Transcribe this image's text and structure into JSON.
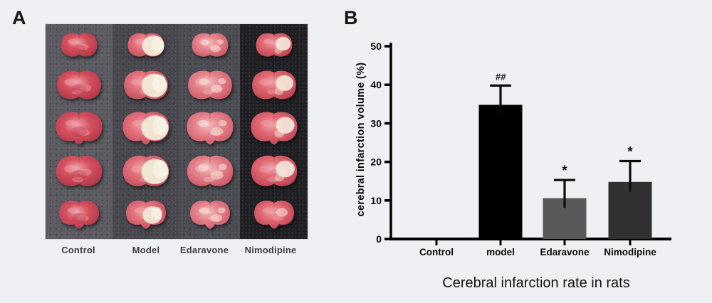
{
  "panelA": {
    "label": "A",
    "rows": 5,
    "columns": [
      {
        "label": "Control",
        "bg": "#5a5a60",
        "base": "#d6505f",
        "light": "#efa3ab",
        "dark": "#b03848",
        "infarct": "none",
        "infarct_color": "#f3e8d8"
      },
      {
        "label": "Model",
        "bg": "#47474d",
        "base": "#e3707c",
        "light": "#f0a8ae",
        "dark": "#c44f5c",
        "infarct": "large",
        "infarct_color": "#f2ead7"
      },
      {
        "label": "Edaravone",
        "bg": "#4b4b52",
        "base": "#e5838d",
        "light": "#f3bcc0",
        "dark": "#cd5a66",
        "infarct": "mottled",
        "infarct_color": "#f5e7dc"
      },
      {
        "label": "Nimodipine",
        "bg": "#202024",
        "base": "#e06672",
        "light": "#eea2a8",
        "dark": "#c04452",
        "infarct": "medium",
        "infarct_color": "#f4e9da"
      }
    ]
  },
  "panelB": {
    "label": "B",
    "caption": "Cerebral infarction rate in rats"
  },
  "chart_data": {
    "type": "bar",
    "categories": [
      "Control",
      "model",
      "Edaravone",
      "Nimodipine"
    ],
    "values": [
      0,
      34.8,
      10.6,
      14.8
    ],
    "errors": [
      0,
      5.0,
      4.7,
      5.4
    ],
    "annotations": [
      "",
      "##",
      "*",
      "*"
    ],
    "bar_colors": [
      "#000000",
      "#000000",
      "#59595b",
      "#313134"
    ],
    "title": "Cerebral infarction rate in rats",
    "xlabel": "",
    "ylabel": "cerebral infarction volume (%)",
    "ylim": [
      0,
      50
    ],
    "yticks": [
      0,
      10,
      20,
      30,
      40,
      50
    ],
    "grid": false,
    "legend": false
  }
}
